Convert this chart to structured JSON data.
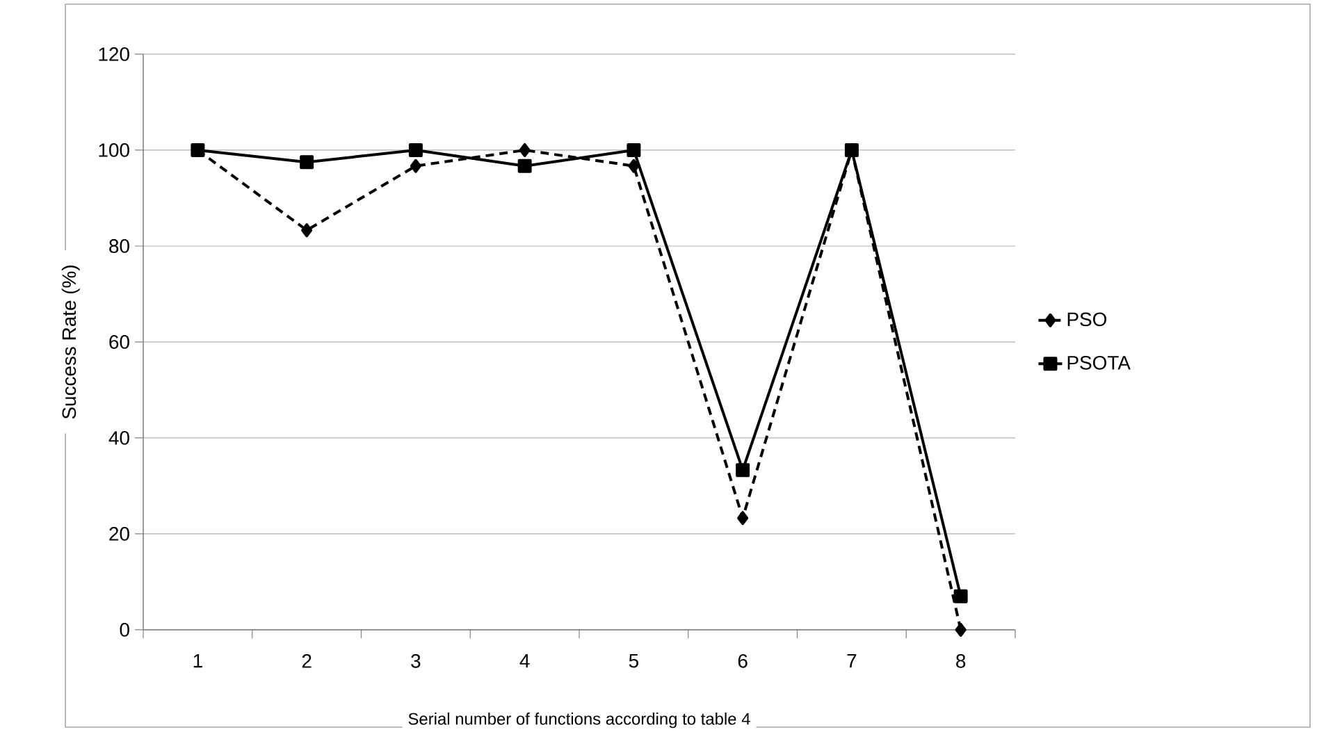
{
  "chart_data": {
    "type": "line",
    "xlabel": "Serial number of functions according to table 4",
    "ylabel": "Success Rate (%)",
    "categories": [
      "1",
      "2",
      "3",
      "4",
      "5",
      "6",
      "7",
      "8"
    ],
    "series": [
      {
        "name": "PSO",
        "color": "#000000",
        "marker": "diamond",
        "line_style": "dashed",
        "values": [
          100,
          83.3,
          96.7,
          100,
          96.7,
          23.3,
          100,
          0
        ]
      },
      {
        "name": "PSOTA",
        "color": "#000000",
        "marker": "square",
        "line_style": "solid",
        "values": [
          100,
          97.5,
          100,
          96.7,
          100,
          33.3,
          100,
          7
        ]
      }
    ],
    "ylim": [
      0,
      120
    ],
    "yticks": [
      0,
      20,
      40,
      60,
      80,
      100,
      120
    ],
    "grid": "y",
    "legend": "right"
  }
}
